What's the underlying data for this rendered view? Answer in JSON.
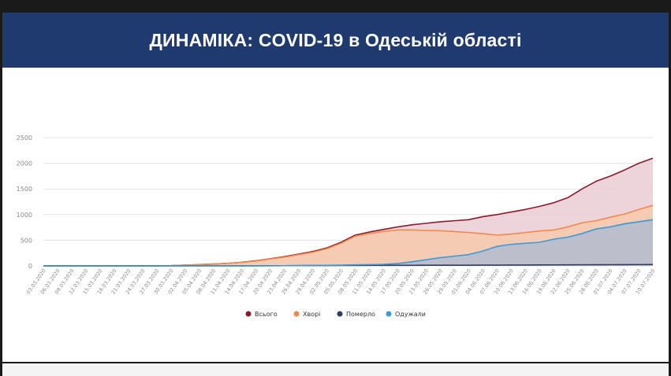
{
  "header": {
    "title": "ДИНАМІКА: COVID-19 в Одеській області"
  },
  "chart_data": {
    "type": "area",
    "ylim": [
      0,
      2500
    ],
    "yticks": [
      0,
      500,
      1000,
      1500,
      2000,
      2500
    ],
    "grid": true,
    "legend_position": "bottom",
    "x": [
      "03.03.2020",
      "06.03.2020",
      "09.03.2020",
      "12.03.2020",
      "15.03.2020",
      "18.03.2020",
      "21.03.2020",
      "24.03.2020",
      "27.03.2020",
      "30.03.2020",
      "02.04.2020",
      "05.04.2020",
      "08.04.2020",
      "11.04.2020",
      "14.04.2020",
      "17.04.2020",
      "20.04.2020",
      "23.04.2020",
      "26.04.2020",
      "29.04.2020",
      "02.05.2020",
      "05.05.2020",
      "08.05.2020",
      "11.05.2020",
      "14.05.2020",
      "17.05.2020",
      "20.05.2020",
      "23.05.2020",
      "26.05.2020",
      "29.05.2020",
      "01.06.2020",
      "04.06.2020",
      "07.06.2020",
      "10.06.2020",
      "13.06.2020",
      "16.06.2020",
      "19.06.2020",
      "22.06.2020",
      "25.06.2020",
      "28.06.2020",
      "01.07.2020",
      "04.07.2020",
      "07.07.2020",
      "10.07.2020"
    ],
    "series": [
      {
        "name": "Всього",
        "color": "#8b1a2b",
        "fill": "#e9cdd3",
        "values": [
          0,
          0,
          0,
          0,
          0,
          0,
          0,
          0,
          2,
          5,
          15,
          25,
          35,
          50,
          70,
          100,
          140,
          180,
          230,
          280,
          350,
          460,
          600,
          660,
          710,
          760,
          800,
          830,
          860,
          880,
          900,
          960,
          1000,
          1050,
          1100,
          1160,
          1230,
          1330,
          1500,
          1650,
          1750,
          1870,
          2000,
          2100
        ]
      },
      {
        "name": "Хворі",
        "color": "#f4884a",
        "fill": "#f7c9ad",
        "values": [
          0,
          0,
          0,
          0,
          0,
          0,
          0,
          0,
          2,
          5,
          15,
          25,
          35,
          50,
          68,
          95,
          135,
          170,
          220,
          265,
          335,
          440,
          580,
          630,
          670,
          700,
          700,
          690,
          685,
          670,
          650,
          630,
          600,
          620,
          650,
          680,
          700,
          760,
          840,
          880,
          950,
          1010,
          1100,
          1180
        ]
      },
      {
        "name": "Померло",
        "color": "#2d3e5e",
        "fill": "none",
        "values": [
          0,
          0,
          0,
          0,
          0,
          0,
          0,
          0,
          0,
          0,
          0,
          0,
          0,
          0,
          1,
          2,
          3,
          4,
          5,
          6,
          7,
          8,
          9,
          10,
          10,
          11,
          11,
          12,
          12,
          13,
          13,
          14,
          15,
          16,
          17,
          18,
          19,
          20,
          21,
          22,
          23,
          24,
          25,
          26
        ]
      },
      {
        "name": "Одужали",
        "color": "#3a9ad6",
        "fill": "#b3bcd0",
        "values": [
          0,
          0,
          0,
          0,
          0,
          0,
          0,
          0,
          0,
          0,
          0,
          0,
          0,
          0,
          0,
          1,
          2,
          4,
          5,
          8,
          10,
          15,
          20,
          25,
          30,
          45,
          80,
          120,
          160,
          190,
          220,
          290,
          380,
          420,
          440,
          460,
          520,
          560,
          630,
          720,
          760,
          820,
          860,
          900
        ]
      }
    ]
  }
}
